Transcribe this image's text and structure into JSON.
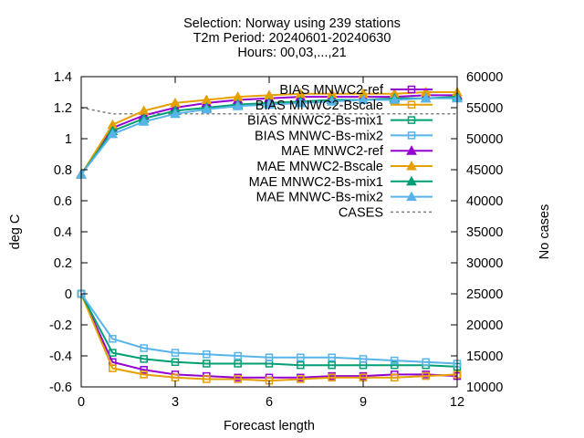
{
  "chart_data": {
    "type": "line",
    "title": [
      "Selection: Norway using   239 stations",
      "T2m   Period: 20240601-20240630",
      "Hours: 00,03,...,21"
    ],
    "xlabel": "Forecast length",
    "ylabel": "deg C",
    "y2label": "No cases",
    "xlim": [
      0,
      12
    ],
    "ylim": [
      -0.6,
      1.4
    ],
    "y2lim": [
      10000,
      60000
    ],
    "xticks": [
      0,
      3,
      6,
      9,
      12
    ],
    "xtick_labels": [
      "0",
      "3",
      "6",
      "9",
      "12"
    ],
    "yticks": [
      -0.6,
      -0.4,
      -0.2,
      0,
      0.2,
      0.4,
      0.6,
      0.8,
      1,
      1.2,
      1.4
    ],
    "ytick_labels": [
      "-0.6",
      "-0.4",
      "-0.2",
      "0",
      "0.2",
      "0.4",
      "0.6",
      "0.8",
      "1",
      "1.2",
      "1.4"
    ],
    "y2ticks": [
      10000,
      15000,
      20000,
      25000,
      30000,
      35000,
      40000,
      45000,
      50000,
      55000,
      60000
    ],
    "y2tick_labels": [
      "10000",
      "15000",
      "20000",
      "25000",
      "30000",
      "35000",
      "40000",
      "45000",
      "50000",
      "55000",
      "60000"
    ],
    "grid": false,
    "legend_position": "inside-top-right",
    "x": [
      0,
      1,
      2,
      3,
      4,
      5,
      6,
      7,
      8,
      9,
      10,
      11,
      12
    ],
    "series": [
      {
        "name": "BIAS MNWC2-ref",
        "color": "#9400d3",
        "marker": "open-square",
        "axis": "y1",
        "values": [
          0.0,
          -0.44,
          -0.49,
          -0.52,
          -0.53,
          -0.54,
          -0.54,
          -0.54,
          -0.53,
          -0.53,
          -0.52,
          -0.52,
          -0.53
        ]
      },
      {
        "name": "BIAS MNWC2-Bscale",
        "color": "#e69f00",
        "marker": "open-square",
        "axis": "y1",
        "values": [
          0.0,
          -0.48,
          -0.52,
          -0.54,
          -0.55,
          -0.55,
          -0.56,
          -0.55,
          -0.54,
          -0.54,
          -0.54,
          -0.53,
          -0.52
        ]
      },
      {
        "name": "BIAS MNWC2-Bs-mix1",
        "color": "#009e73",
        "marker": "open-square",
        "axis": "y1",
        "values": [
          0.0,
          -0.38,
          -0.42,
          -0.44,
          -0.45,
          -0.45,
          -0.45,
          -0.46,
          -0.46,
          -0.46,
          -0.46,
          -0.46,
          -0.47
        ]
      },
      {
        "name": "BIAS MNWC-Bs-mix2",
        "color": "#56b4e9",
        "marker": "open-square",
        "axis": "y1",
        "values": [
          0.0,
          -0.29,
          -0.35,
          -0.38,
          -0.39,
          -0.4,
          -0.41,
          -0.41,
          -0.41,
          -0.42,
          -0.43,
          -0.44,
          -0.45
        ]
      },
      {
        "name": "MAE MNWC2-ref",
        "color": "#9400d3",
        "marker": "filled-triangle",
        "axis": "y1",
        "values": [
          0.77,
          1.07,
          1.15,
          1.2,
          1.23,
          1.25,
          1.26,
          1.27,
          1.27,
          1.27,
          1.27,
          1.28,
          1.28
        ]
      },
      {
        "name": "MAE MNWC2-Bscale",
        "color": "#e69f00",
        "marker": "filled-triangle",
        "axis": "y1",
        "values": [
          0.77,
          1.09,
          1.18,
          1.23,
          1.25,
          1.27,
          1.28,
          1.29,
          1.29,
          1.29,
          1.29,
          1.3,
          1.3
        ]
      },
      {
        "name": "MAE MNWC2-Bs-mix1",
        "color": "#009e73",
        "marker": "filled-triangle",
        "axis": "y1",
        "values": [
          0.77,
          1.05,
          1.13,
          1.18,
          1.2,
          1.22,
          1.23,
          1.24,
          1.25,
          1.25,
          1.26,
          1.26,
          1.27
        ]
      },
      {
        "name": "MAE MNWC-Bs-mix2",
        "color": "#56b4e9",
        "marker": "filled-triangle",
        "axis": "y1",
        "values": [
          0.77,
          1.03,
          1.11,
          1.16,
          1.19,
          1.21,
          1.22,
          1.23,
          1.24,
          1.25,
          1.25,
          1.26,
          1.26
        ]
      },
      {
        "name": "CASES",
        "color": "#7f7f7f",
        "marker": "none",
        "dash": true,
        "axis": "y2",
        "values": [
          55000,
          54000,
          54000,
          54000,
          54000,
          54000,
          54000,
          54000,
          54000,
          54000,
          54000,
          54000,
          54000
        ]
      }
    ]
  }
}
